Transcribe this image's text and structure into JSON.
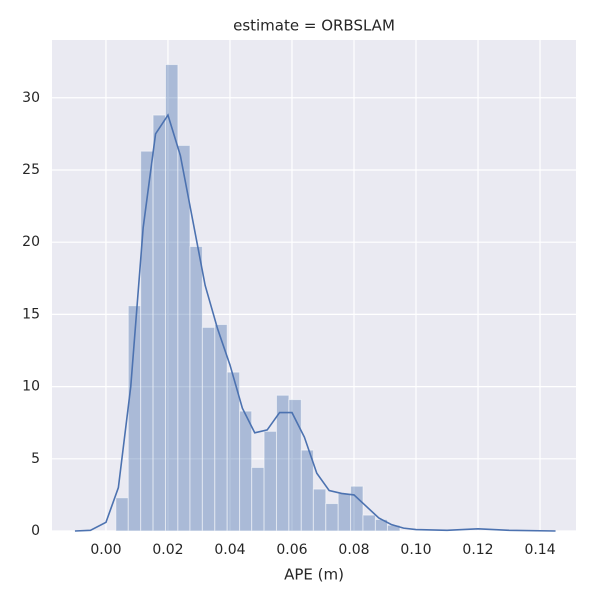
{
  "chart_data": {
    "type": "histogram",
    "title": "estimate = ORBSLAM",
    "x_label": "APE (m)",
    "color": "#4c72b0",
    "grid": true,
    "bins": [
      0.0032,
      0.0072,
      0.0112,
      0.0152,
      0.0192,
      0.0232,
      0.0271,
      0.0311,
      0.0351,
      0.0391,
      0.0431,
      0.047,
      0.051,
      0.055,
      0.059,
      0.063,
      0.0669,
      0.0709,
      0.0749,
      0.0789,
      0.0829,
      0.0869,
      0.0908,
      0.0948
    ],
    "counts": [
      2.3,
      15.6,
      26.3,
      28.8,
      32.3,
      26.7,
      19.7,
      14.1,
      14.3,
      11.0,
      8.3,
      4.4,
      6.9,
      9.4,
      9.1,
      5.6,
      2.9,
      1.9,
      2.6,
      3.1,
      1.1,
      0.8,
      0.4
    ],
    "kde": {
      "color": "#4c72b0",
      "x": [
        -0.01,
        -0.005,
        0.0,
        0.004,
        0.008,
        0.012,
        0.016,
        0.02,
        0.024,
        0.028,
        0.032,
        0.036,
        0.04,
        0.044,
        0.048,
        0.052,
        0.056,
        0.06,
        0.064,
        0.068,
        0.072,
        0.076,
        0.08,
        0.084,
        0.088,
        0.092,
        0.096,
        0.1,
        0.11,
        0.12,
        0.13,
        0.145
      ],
      "values": [
        0,
        0.05,
        0.6,
        3,
        10,
        21,
        27.5,
        28.8,
        26,
        21.5,
        17,
        14,
        11.5,
        8.5,
        6.8,
        7,
        8.2,
        8.2,
        6.5,
        4.0,
        2.8,
        2.6,
        2.5,
        1.7,
        0.9,
        0.45,
        0.2,
        0.1,
        0.05,
        0.15,
        0.05,
        0
      ]
    },
    "xlim": [
      -0.0174,
      0.1516
    ],
    "ylim": [
      0,
      34.0
    ],
    "xticks": [
      {
        "value": 0,
        "label": "0.00"
      },
      0.02,
      0.04,
      0.06,
      0.08,
      {
        "value": 0.1,
        "label": "0.10"
      },
      0.12,
      0.14
    ],
    "yticks": [
      0,
      5,
      10,
      15,
      20,
      25,
      30
    ]
  }
}
